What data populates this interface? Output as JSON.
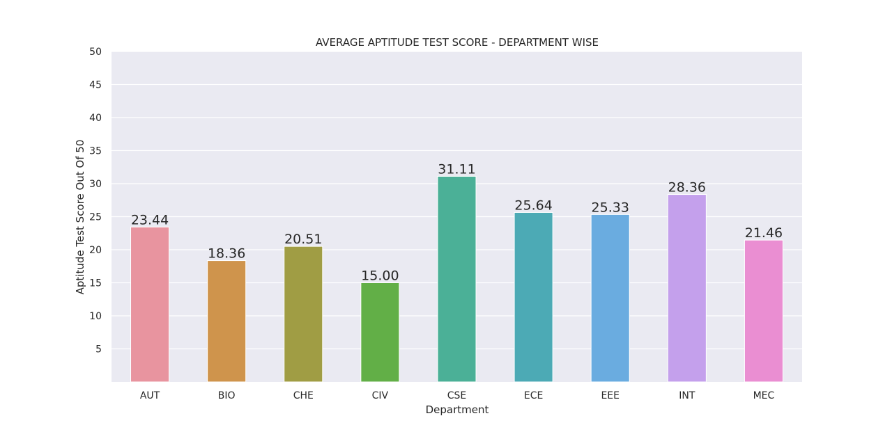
{
  "chart_data": {
    "type": "bar",
    "title": "AVERAGE APTITUDE TEST SCORE - DEPARTMENT WISE",
    "xlabel": "Department",
    "ylabel": "Aptitude Test Score Out Of 50",
    "categories": [
      "AUT",
      "BIO",
      "CHE",
      "CIV",
      "CSE",
      "ECE",
      "EEE",
      "INT",
      "MEC"
    ],
    "values": [
      23.44,
      18.36,
      20.51,
      15.0,
      31.11,
      25.64,
      25.33,
      28.36,
      21.46
    ],
    "data_labels": [
      "23.44",
      "18.36",
      "20.51",
      "15.00",
      "31.11",
      "25.64",
      "25.33",
      "28.36",
      "21.46"
    ],
    "colors": [
      "#e8949f",
      "#cf944c",
      "#a09d44",
      "#62af47",
      "#4bb097",
      "#4caab5",
      "#6aace0",
      "#c4a0ec",
      "#ea8ed2"
    ],
    "ylim": [
      0,
      50
    ],
    "yticks": [
      5,
      10,
      15,
      20,
      25,
      30,
      35,
      40,
      45,
      50
    ],
    "grid": true,
    "background": "#eaeaf2",
    "grid_color": "#ffffff"
  }
}
